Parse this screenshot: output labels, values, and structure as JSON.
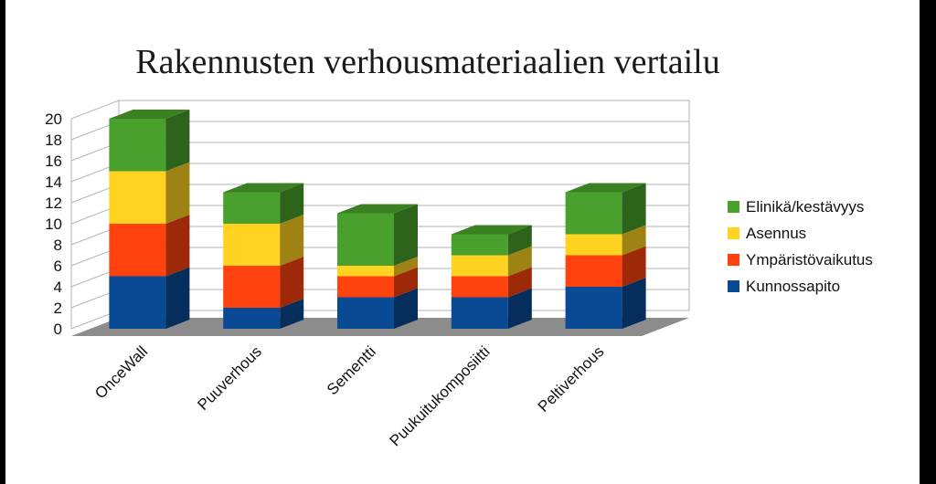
{
  "chart_data": {
    "type": "bar",
    "stacked": true,
    "style": "3d",
    "title": "Rakennusten verhousmateriaalien vertailu",
    "xlabel": "",
    "ylabel": "",
    "ylim": [
      0,
      20
    ],
    "yticks": [
      0,
      2,
      4,
      6,
      8,
      10,
      12,
      14,
      16,
      18,
      20
    ],
    "grid": true,
    "legend_position": "right",
    "categories": [
      "OnceWall",
      "Puuverhous",
      "Sementti",
      "Puukuitukomposiitti",
      "Peltiverhous"
    ],
    "series": [
      {
        "name": "Kunnossapito",
        "color": "#0a4a94",
        "values": [
          5,
          2,
          3,
          3,
          4
        ]
      },
      {
        "name": "Ympäristövaikutus",
        "color": "#ff420e",
        "values": [
          5,
          4,
          2,
          2,
          3
        ]
      },
      {
        "name": "Asennus",
        "color": "#ffd320",
        "values": [
          5,
          4,
          1,
          2,
          2
        ]
      },
      {
        "name": "Elinikä/kestävyys",
        "color": "#4aa02c",
        "values": [
          5,
          3,
          5,
          2,
          4
        ]
      }
    ]
  }
}
